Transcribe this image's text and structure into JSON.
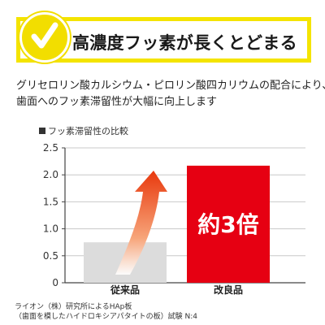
{
  "banner": {
    "title": "高濃度フッ素が長くとどまる",
    "check_color": "#f2de00"
  },
  "description": [
    "グリセロリン酸カルシウム・ピロリン酸四カリウムの配合により、",
    "歯面へのフッ素滞留性が大幅に向上します"
  ],
  "chart_data": {
    "type": "bar",
    "title": "フッ素滞留性の比較",
    "categories": [
      "従来品",
      "改良品"
    ],
    "values": [
      0.75,
      2.17
    ],
    "colors": [
      "#dcdcdc",
      "#e60012"
    ],
    "ylim": [
      0,
      2.5
    ],
    "yticks": [
      0,
      0.5,
      1.0,
      1.5,
      2.0,
      2.5
    ],
    "ytick_labels": [
      "0",
      "0.5",
      "1.0",
      "1.5",
      "2.0",
      "2.5"
    ],
    "annotation": "約3倍",
    "arrow_color": "#f05a1a",
    "grid": true
  },
  "footnote": [
    "ライオン（株）研究所によるHAp板",
    "（歯面を模したハイドロキシアパタイトの板）試験  N:4"
  ]
}
